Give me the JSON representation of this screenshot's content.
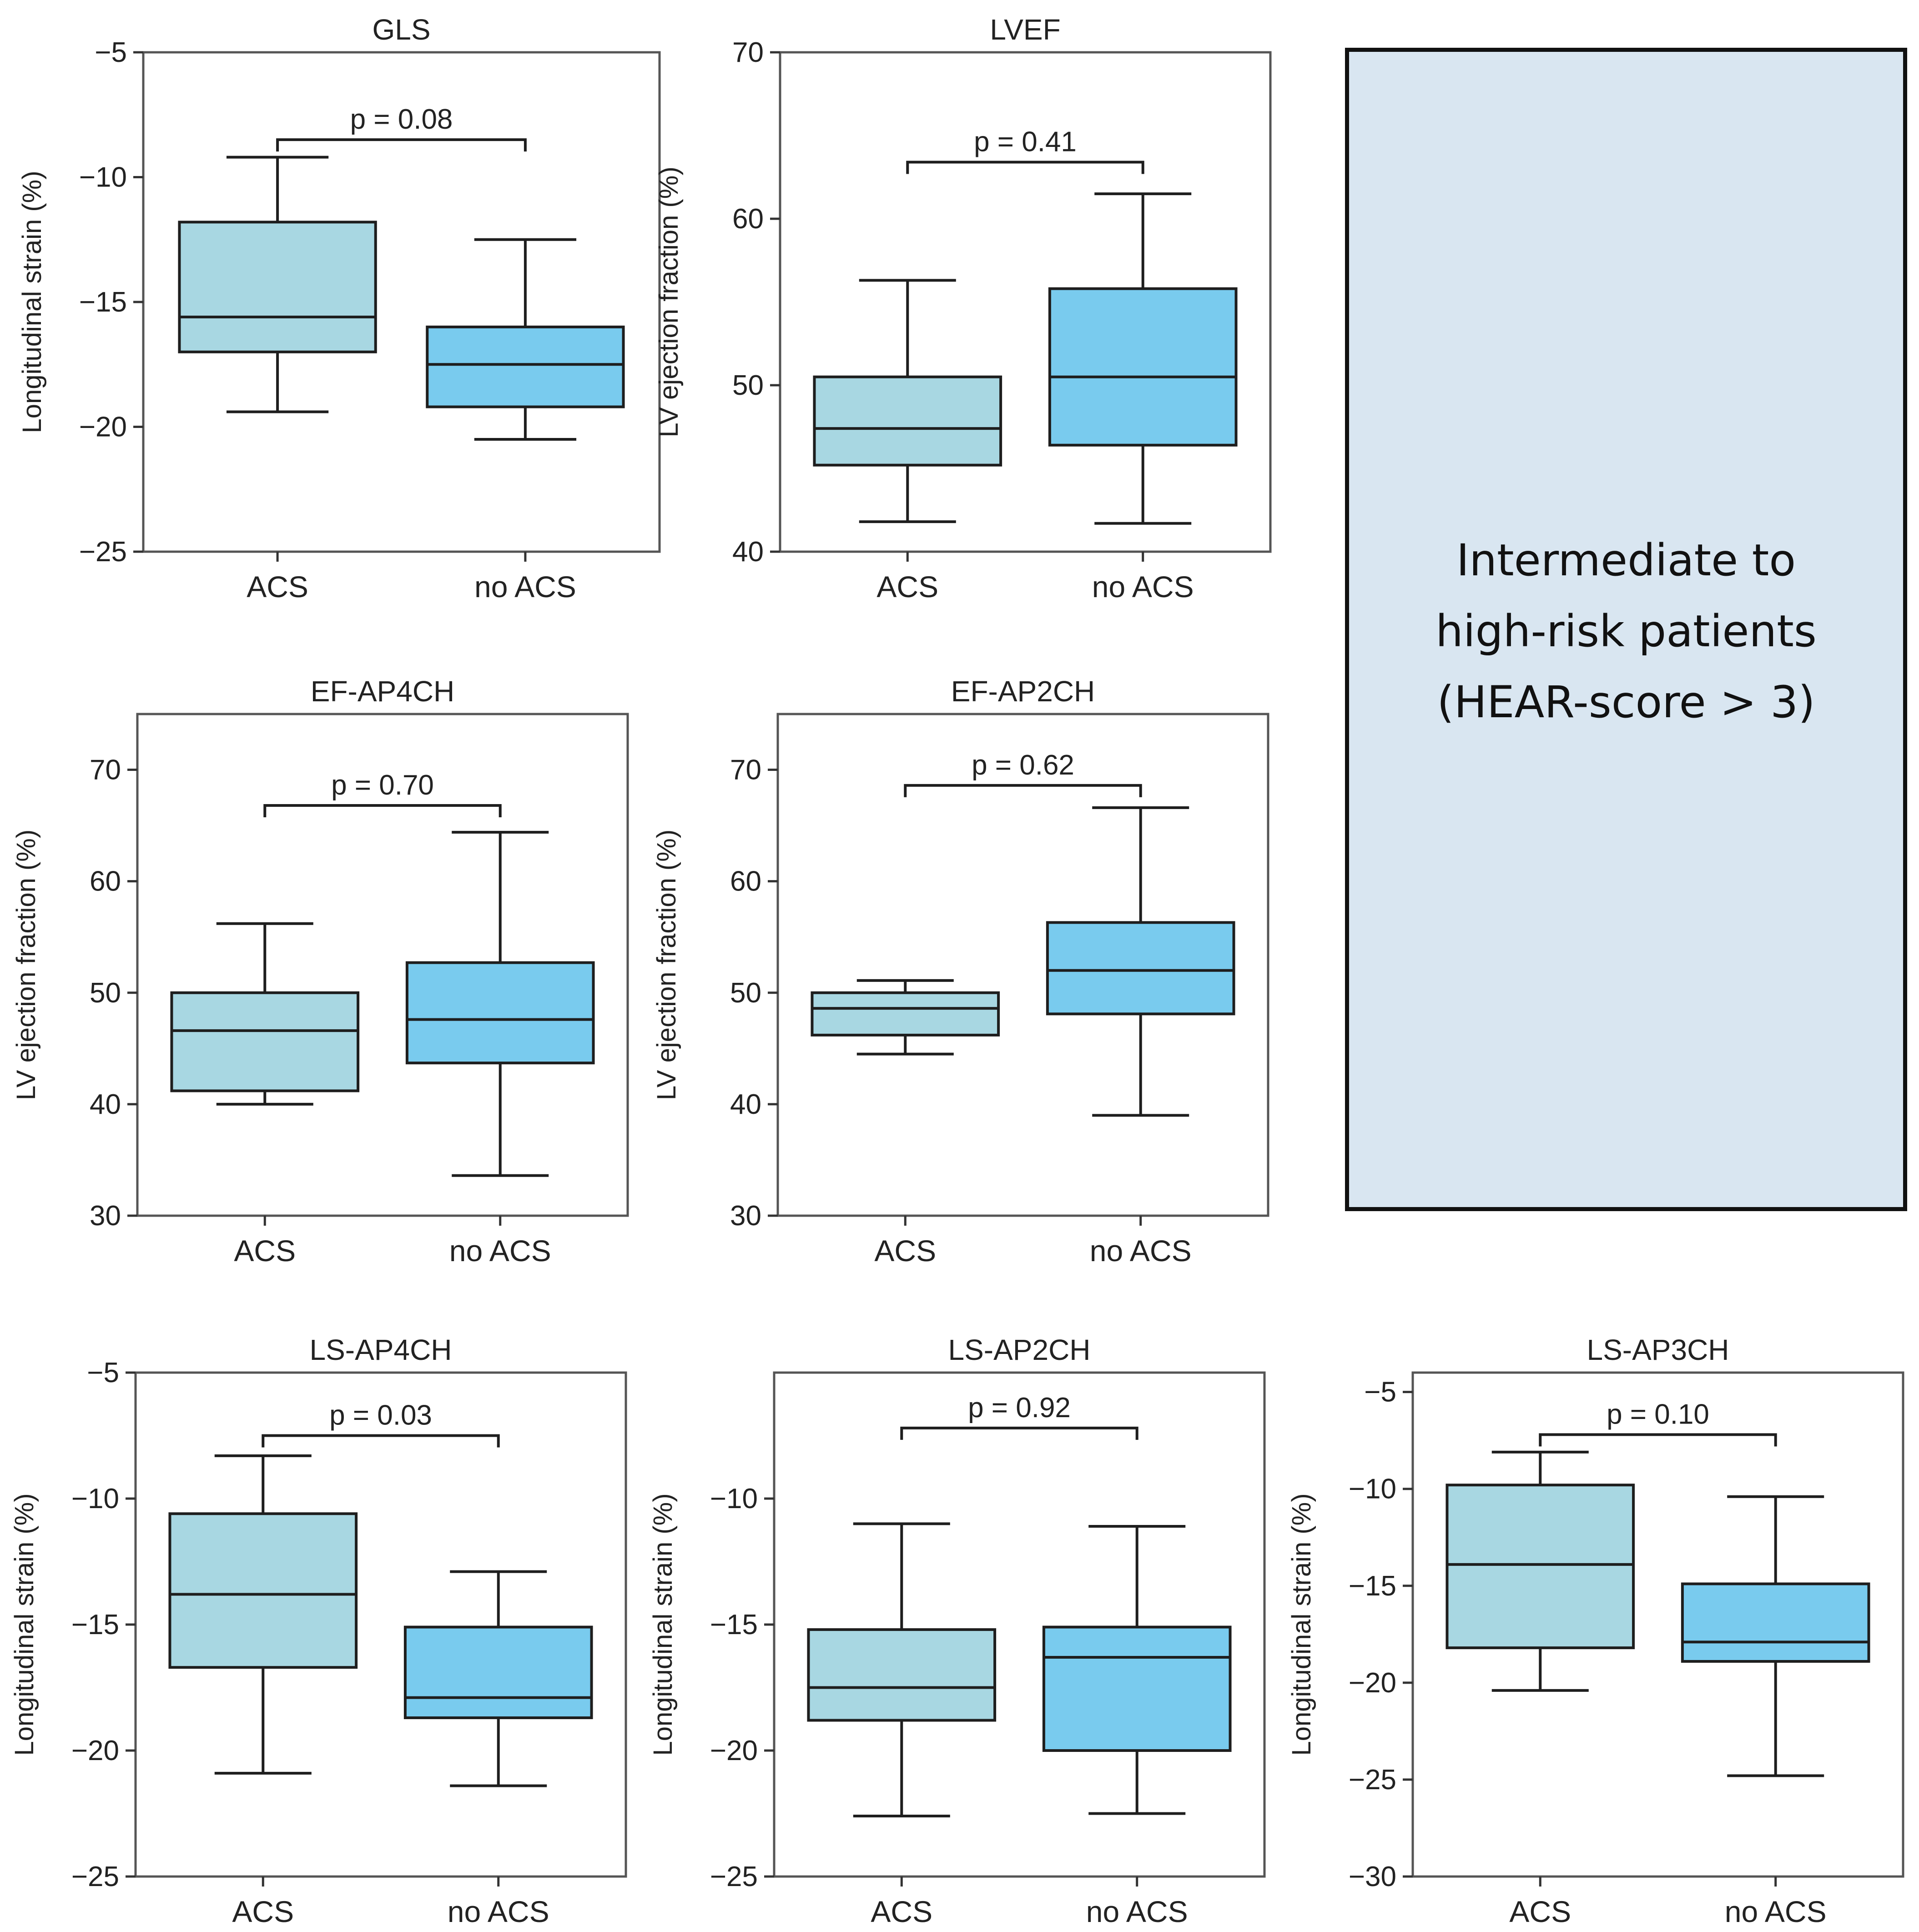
{
  "colors": {
    "acs": "#a8d7e2",
    "no_acs": "#79cbee",
    "stroke": "#1e1e1e",
    "panel_bg": "#d9e6f1"
  },
  "info_box": {
    "text": "Intermediate to\nhigh-risk patients\n(HEAR-score > 3)"
  },
  "chart_data": [
    {
      "type": "box",
      "title": "GLS",
      "ylabel": "Longitudinal strain (%)",
      "ylim": [
        -25,
        -5
      ],
      "yticks": [
        -5,
        -10,
        -15,
        -20,
        -25
      ],
      "categories": [
        "ACS",
        "no ACS"
      ],
      "boxes": [
        {
          "name": "ACS",
          "whisker_low": -19.4,
          "q1": -17.0,
          "median": -15.6,
          "q3": -11.8,
          "whisker_high": -9.2
        },
        {
          "name": "no ACS",
          "whisker_low": -20.5,
          "q1": -19.2,
          "median": -17.5,
          "q3": -16.0,
          "whisker_high": -12.5
        }
      ],
      "p_value": "p = 0.08",
      "bracket_y": -8.5
    },
    {
      "type": "box",
      "title": "LVEF",
      "ylabel": "LV ejection fraction (%)",
      "ylim": [
        40,
        70
      ],
      "yticks": [
        70,
        60,
        50,
        40
      ],
      "categories": [
        "ACS",
        "no ACS"
      ],
      "boxes": [
        {
          "name": "ACS",
          "whisker_low": 41.8,
          "q1": 45.2,
          "median": 47.4,
          "q3": 50.5,
          "whisker_high": 56.3
        },
        {
          "name": "no ACS",
          "whisker_low": 41.7,
          "q1": 46.4,
          "median": 50.5,
          "q3": 55.8,
          "whisker_high": 61.5
        }
      ],
      "p_value": "p = 0.41",
      "bracket_y": 63.4
    },
    {
      "type": "box",
      "title": "EF-AP4CH",
      "ylabel": "LV ejection fraction (%)",
      "ylim": [
        30,
        75
      ],
      "yticks": [
        70,
        60,
        50,
        40,
        30
      ],
      "categories": [
        "ACS",
        "no ACS"
      ],
      "boxes": [
        {
          "name": "ACS",
          "whisker_low": 40.0,
          "q1": 41.2,
          "median": 46.6,
          "q3": 50.0,
          "whisker_high": 56.2
        },
        {
          "name": "no ACS",
          "whisker_low": 33.6,
          "q1": 43.7,
          "median": 47.6,
          "q3": 52.7,
          "whisker_high": 64.4
        }
      ],
      "p_value": "p = 0.70",
      "bracket_y": 66.8
    },
    {
      "type": "box",
      "title": "EF-AP2CH",
      "ylabel": "LV ejection fraction (%)",
      "ylim": [
        30,
        75
      ],
      "yticks": [
        70,
        60,
        50,
        40,
        30
      ],
      "categories": [
        "ACS",
        "no ACS"
      ],
      "boxes": [
        {
          "name": "ACS",
          "whisker_low": 44.5,
          "q1": 46.2,
          "median": 48.6,
          "q3": 50.0,
          "whisker_high": 51.1
        },
        {
          "name": "no ACS",
          "whisker_low": 39.0,
          "q1": 48.1,
          "median": 52.0,
          "q3": 56.3,
          "whisker_high": 66.6
        }
      ],
      "p_value": "p = 0.62",
      "bracket_y": 68.6
    },
    {
      "type": "box",
      "title": "LS-AP4CH",
      "ylabel": "Longitudinal strain (%)",
      "ylim": [
        -25,
        -5
      ],
      "yticks": [
        -5,
        -10,
        -15,
        -20,
        -25
      ],
      "categories": [
        "ACS",
        "no ACS"
      ],
      "boxes": [
        {
          "name": "ACS",
          "whisker_low": -20.9,
          "q1": -16.7,
          "median": -13.8,
          "q3": -10.6,
          "whisker_high": -8.3
        },
        {
          "name": "no ACS",
          "whisker_low": -21.4,
          "q1": -18.7,
          "median": -17.9,
          "q3": -15.1,
          "whisker_high": -12.9
        }
      ],
      "p_value": "p = 0.03",
      "bracket_y": -7.5
    },
    {
      "type": "box",
      "title": "LS-AP2CH",
      "ylabel": "Longitudinal strain (%)",
      "ylim": [
        -25,
        -5
      ],
      "yticks": [
        -10,
        -15,
        -20,
        -25
      ],
      "categories": [
        "ACS",
        "no ACS"
      ],
      "boxes": [
        {
          "name": "ACS",
          "whisker_low": -22.6,
          "q1": -18.8,
          "median": -17.5,
          "q3": -15.2,
          "whisker_high": -11.0
        },
        {
          "name": "no ACS",
          "whisker_low": -22.5,
          "q1": -20.0,
          "median": -16.3,
          "q3": -15.1,
          "whisker_high": -11.1
        }
      ],
      "p_value": "p = 0.92",
      "bracket_y": -7.2
    },
    {
      "type": "box",
      "title": "LS-AP3CH",
      "ylabel": "Longitudinal strain (%)",
      "ylim": [
        -30,
        -4
      ],
      "yticks": [
        -5,
        -10,
        -15,
        -20,
        -25,
        -30
      ],
      "categories": [
        "ACS",
        "no ACS"
      ],
      "boxes": [
        {
          "name": "ACS",
          "whisker_low": -20.4,
          "q1": -18.2,
          "median": -13.9,
          "q3": -9.8,
          "whisker_high": -8.1
        },
        {
          "name": "no ACS",
          "whisker_low": -24.8,
          "q1": -18.9,
          "median": -17.9,
          "q3": -14.9,
          "whisker_high": -10.4
        }
      ],
      "p_value": "p = 0.10",
      "bracket_y": -7.2
    }
  ]
}
